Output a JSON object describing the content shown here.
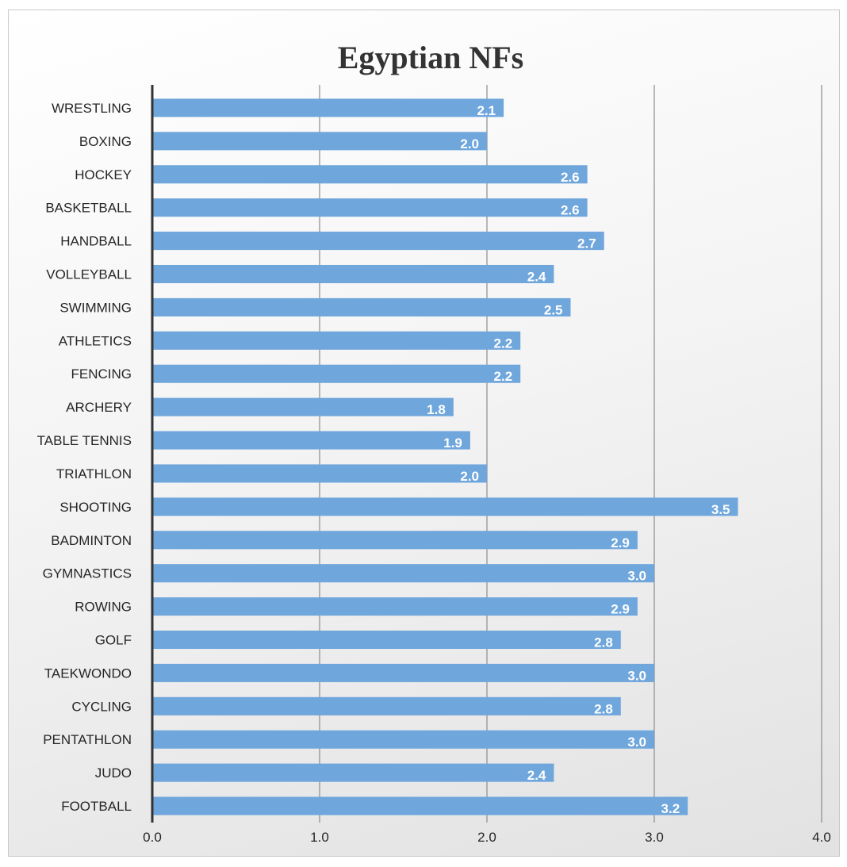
{
  "chart_data": {
    "type": "bar",
    "orientation": "horizontal",
    "title": "Egyptian NFs",
    "xlabel": "",
    "ylabel": "",
    "categories": [
      "WRESTLING",
      "BOXING",
      "HOCKEY",
      "BASKETBALL",
      "HANDBALL",
      "VOLLEYBALL",
      "SWIMMING",
      "ATHLETICS",
      "FENCING",
      "ARCHERY",
      "TABLE TENNIS",
      "TRIATHLON",
      "SHOOTING",
      "BADMINTON",
      "GYMNASTICS",
      "ROWING",
      "GOLF",
      "TAEKWONDO",
      "CYCLING",
      "PENTATHLON",
      "JUDO",
      "FOOTBALL"
    ],
    "values": [
      2.1,
      2.0,
      2.6,
      2.6,
      2.7,
      2.4,
      2.5,
      2.2,
      2.2,
      1.8,
      1.9,
      2.0,
      3.5,
      2.9,
      3.0,
      2.9,
      2.8,
      3.0,
      2.8,
      3.0,
      2.4,
      3.2
    ],
    "xlim": [
      0,
      4
    ],
    "xticks": [
      "0.0",
      "1.0",
      "2.0",
      "3.0",
      "4.0"
    ],
    "grid": true,
    "legend": "none",
    "data_labels": true,
    "bar_color": "#6fa6dc"
  }
}
